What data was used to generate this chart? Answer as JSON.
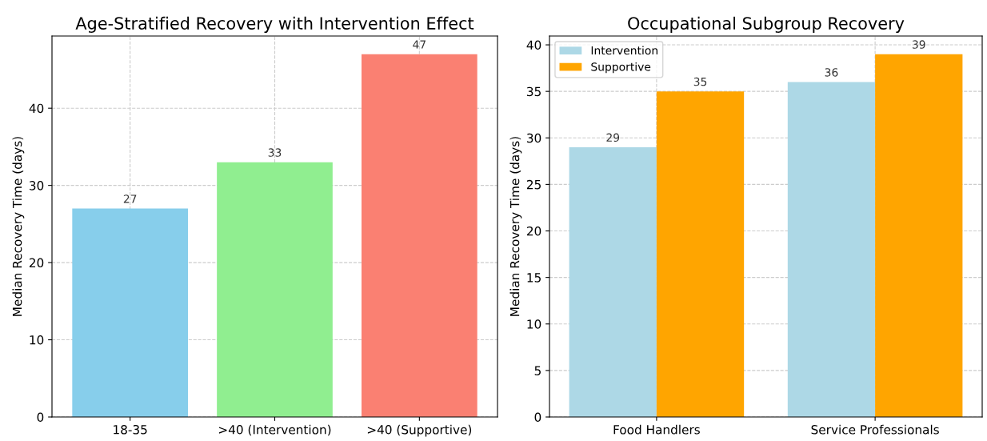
{
  "chart_data": [
    {
      "type": "bar",
      "title": "Age-Stratified Recovery with Intervention Effect",
      "ylabel": "Median Recovery Time (days)",
      "categories": [
        "18-35",
        ">40 (Intervention)",
        ">40 (Supportive)"
      ],
      "values": [
        27,
        33,
        47
      ],
      "colors": [
        "#87ceeb",
        "#90ee90",
        "#fa8072"
      ],
      "data_labels": true,
      "ylim": [
        0,
        49.35
      ],
      "yticks": [
        0,
        10,
        20,
        30,
        40
      ],
      "grid": true
    },
    {
      "type": "bar",
      "title": "Occupational Subgroup Recovery",
      "ylabel": "Median Recovery Time (days)",
      "categories": [
        "Food Handlers",
        "Service Professionals"
      ],
      "series": [
        {
          "name": "Intervention",
          "color": "#add8e6",
          "values": [
            29,
            36
          ]
        },
        {
          "name": "Supportive",
          "color": "#ffa500",
          "values": [
            35,
            39
          ]
        }
      ],
      "data_labels": true,
      "ylim": [
        0,
        40.95
      ],
      "yticks": [
        0,
        5,
        10,
        15,
        20,
        25,
        30,
        35,
        40
      ],
      "grid": true,
      "legend": "top left"
    }
  ]
}
